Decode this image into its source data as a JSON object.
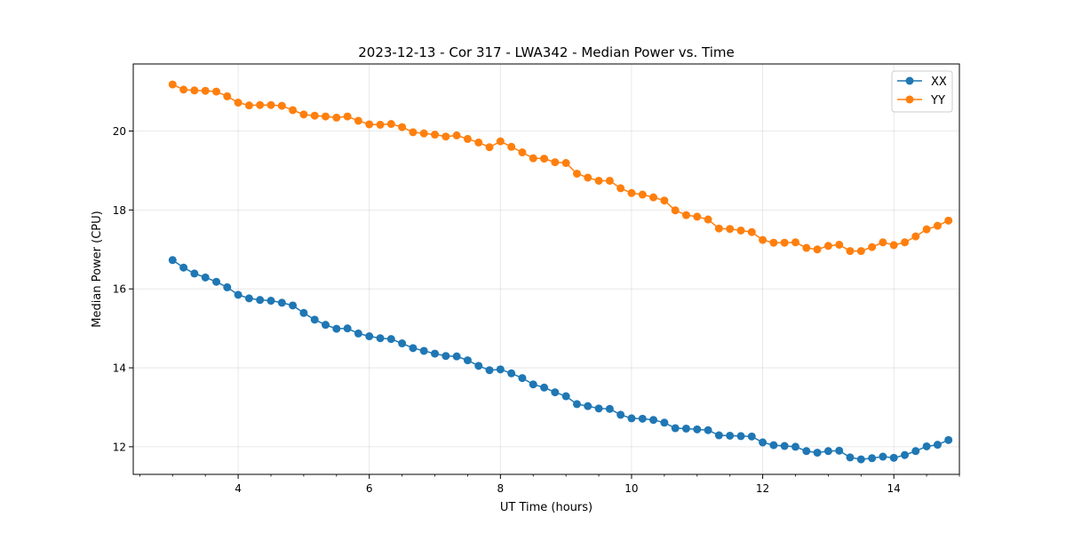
{
  "chart_data": {
    "type": "line",
    "title": "2023-12-13 - Cor 317 - LWA342 - Median Power vs. Time",
    "xlabel": "UT Time (hours)",
    "ylabel": "Median Power (CPU)",
    "xlim": [
      2.4,
      15.0
    ],
    "ylim": [
      11.3,
      21.7
    ],
    "xticks": [
      4,
      6,
      8,
      10,
      12,
      14
    ],
    "xtick_labels": [
      "4",
      "6",
      "8",
      "10",
      "12",
      "14"
    ],
    "yticks": [
      12,
      14,
      16,
      18,
      20
    ],
    "ytick_labels": [
      "12",
      "14",
      "16",
      "18",
      "20"
    ],
    "grid": true,
    "legend_position": "top-right",
    "x": [
      3.0,
      3.167,
      3.333,
      3.5,
      3.667,
      3.833,
      4.0,
      4.167,
      4.333,
      4.5,
      4.667,
      4.833,
      5.0,
      5.167,
      5.333,
      5.5,
      5.667,
      5.833,
      6.0,
      6.167,
      6.333,
      6.5,
      6.667,
      6.833,
      7.0,
      7.167,
      7.333,
      7.5,
      7.667,
      7.833,
      8.0,
      8.167,
      8.333,
      8.5,
      8.667,
      8.833,
      9.0,
      9.167,
      9.333,
      9.5,
      9.667,
      9.833,
      10.0,
      10.167,
      10.333,
      10.5,
      10.667,
      10.833,
      11.0,
      11.167,
      11.333,
      11.5,
      11.667,
      11.833,
      12.0,
      12.167,
      12.333,
      12.5,
      12.667,
      12.833,
      13.0,
      13.167,
      13.333,
      13.5,
      13.667,
      13.833,
      14.0,
      14.167,
      14.333,
      14.5,
      14.667,
      14.833
    ],
    "series": [
      {
        "name": "XX",
        "color": "#1f77b4",
        "values": [
          16.73,
          16.54,
          16.39,
          16.29,
          16.18,
          16.04,
          15.85,
          15.76,
          15.72,
          15.7,
          15.65,
          15.58,
          15.39,
          15.22,
          15.09,
          14.99,
          15.0,
          14.87,
          14.8,
          14.75,
          14.73,
          14.62,
          14.5,
          14.43,
          14.36,
          14.3,
          14.29,
          14.19,
          14.05,
          13.94,
          13.96,
          13.86,
          13.74,
          13.58,
          13.5,
          13.38,
          13.28,
          13.08,
          13.03,
          12.97,
          12.96,
          12.81,
          12.72,
          12.71,
          12.68,
          12.61,
          12.47,
          12.46,
          12.44,
          12.42,
          12.29,
          12.28,
          12.27,
          12.26,
          12.11,
          12.04,
          12.02,
          12.0,
          11.89,
          11.85,
          11.89,
          11.9,
          11.73,
          11.68,
          11.71,
          11.75,
          11.72,
          11.79,
          11.89,
          12.01,
          12.05,
          12.17
        ]
      },
      {
        "name": "YY",
        "color": "#ff7f0e",
        "values": [
          21.18,
          21.05,
          21.03,
          21.02,
          21.0,
          20.88,
          20.72,
          20.65,
          20.66,
          20.66,
          20.64,
          20.53,
          20.42,
          20.39,
          20.37,
          20.34,
          20.37,
          20.26,
          20.17,
          20.16,
          20.18,
          20.1,
          19.97,
          19.94,
          19.91,
          19.86,
          19.89,
          19.8,
          19.71,
          19.59,
          19.74,
          19.6,
          19.46,
          19.31,
          19.3,
          19.21,
          19.19,
          18.92,
          18.82,
          18.74,
          18.74,
          18.55,
          18.43,
          18.39,
          18.32,
          18.24,
          17.99,
          17.87,
          17.83,
          17.76,
          17.53,
          17.52,
          17.48,
          17.44,
          17.24,
          17.17,
          17.17,
          17.18,
          17.04,
          17.0,
          17.09,
          17.12,
          16.96,
          16.96,
          17.06,
          17.18,
          17.11,
          17.18,
          17.33,
          17.51,
          17.6,
          17.73
        ]
      }
    ]
  }
}
